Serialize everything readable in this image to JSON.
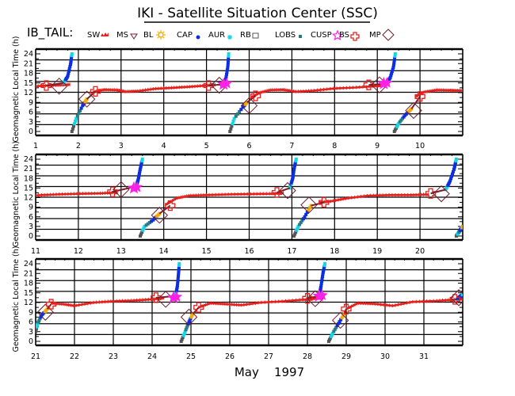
{
  "header": {
    "title": "IKI - Satellite Situation Center (SSC)",
    "region_label": "IB_TAIL:"
  },
  "legend": [
    {
      "label": "SW",
      "symbol": "bow-shock-marker",
      "color": "#e8201c"
    },
    {
      "label": "MS",
      "symbol": "triangle-down",
      "color": "#7a1e2e"
    },
    {
      "label": "BL",
      "symbol": "sun",
      "color": "#f5a800"
    },
    {
      "label": "CAP",
      "symbol": "dot",
      "color": "#0b2ee0"
    },
    {
      "label": "AUR",
      "symbol": "asterisk",
      "color": "#12d6e8"
    },
    {
      "label": "RB",
      "symbol": "square-open",
      "color": "#555555"
    },
    {
      "label": "LOBS",
      "symbol": "square-filled",
      "color": "#2a7a86"
    },
    {
      "label": "CUSP",
      "symbol": "star",
      "color": "#ff22e6"
    },
    {
      "label": "BS",
      "symbol": "cross-open",
      "color": "#e8201c"
    },
    {
      "label": "MP",
      "symbol": "diamond-open",
      "color": "#6b1e2b"
    }
  ],
  "chart_data": {
    "type": "scatter",
    "title": "IKI - Satellite Situation Center (SSC)",
    "xlabel": "May    1997",
    "ylabel": "Geomagnetic Local Time (h)",
    "ylim": [
      0,
      24
    ],
    "yticks": [
      0,
      3,
      6,
      9,
      12,
      15,
      18,
      21,
      24
    ],
    "grid": true,
    "legend_position": "top",
    "colors": {
      "SW": "#e8201c",
      "MS": "#7a1e2e",
      "BL": "#f5a800",
      "CAP": "#0b2ee0",
      "AUR": "#12d6e8",
      "RB": "#555555",
      "LOBS": "#2a7a86",
      "CUSP": "#ff22e6",
      "BS": "#e8201c",
      "MP": "#6b1e2b"
    },
    "panels": [
      {
        "xlim": [
          1,
          11
        ],
        "xticks": [
          "1",
          "2",
          "3",
          "4",
          "5",
          "6",
          "7",
          "8",
          "9",
          "10"
        ],
        "sw_track": [
          [
            1.0,
            14.0
          ],
          [
            1.5,
            14.3
          ],
          [
            1.8,
            14.5
          ]
        ],
        "sw_tracks_more": [
          [
            [
              2.35,
              12.2
            ],
            [
              2.6,
              12.9
            ],
            [
              2.9,
              12.8
            ],
            [
              3.1,
              12.3
            ],
            [
              3.4,
              12.5
            ],
            [
              3.8,
              13.2
            ],
            [
              4.2,
              13.5
            ],
            [
              4.6,
              13.8
            ],
            [
              5.0,
              14.2
            ],
            [
              5.2,
              14.4
            ]
          ],
          [
            [
              6.05,
              10.5
            ],
            [
              6.25,
              12.0
            ],
            [
              6.5,
              12.8
            ],
            [
              6.8,
              12.9
            ],
            [
              7.1,
              12.3
            ],
            [
              7.5,
              12.6
            ],
            [
              8.0,
              13.3
            ],
            [
              8.5,
              13.6
            ],
            [
              9.0,
              14.1
            ],
            [
              9.1,
              14.3
            ]
          ],
          [
            [
              9.9,
              10.8
            ],
            [
              10.1,
              12.2
            ],
            [
              10.4,
              12.8
            ],
            [
              10.7,
              12.7
            ],
            [
              11.0,
              12.6
            ]
          ]
        ],
        "descending_arcs": [
          {
            "x": [
              1.85,
              1.95,
              2.1,
              2.2
            ],
            "y": [
              0,
              4,
              8,
              10
            ],
            "bs": [
              2.4,
              12.4
            ],
            "mp": [
              2.2,
              10.0
            ]
          },
          {
            "x": [
              5.55,
              5.65,
              5.85,
              5.95
            ],
            "y": [
              0,
              4,
              7.5,
              9.0
            ],
            "bs": [
              6.15,
              11.0
            ],
            "mp": [
              6.0,
              8.0
            ]
          },
          {
            "x": [
              9.4,
              9.5,
              9.65,
              9.8
            ],
            "y": [
              0,
              2.5,
              5.0,
              7.0
            ],
            "bs": [
              10.0,
              10.8
            ],
            "mp": [
              9.85,
              6.5
            ]
          }
        ],
        "ascending_arcs": [
          {
            "x": [
              1.65,
              1.75,
              1.82,
              1.85
            ],
            "y": [
              15,
              17,
              21,
              24
            ],
            "bs": [
              1.25,
              14.2
            ],
            "mp": [
              1.55,
              14.0
            ],
            "cusp": null
          },
          {
            "x": [
              5.35,
              5.45,
              5.5,
              5.52
            ],
            "y": [
              14.5,
              16,
              20,
              24
            ],
            "bs": [
              5.05,
              14.2
            ],
            "mp": [
              5.3,
              14.3
            ],
            "cusp": [
              5.4,
              14.6
            ]
          },
          {
            "x": [
              9.2,
              9.3,
              9.38,
              9.42
            ],
            "y": [
              14.8,
              16.5,
              20,
              24
            ],
            "bs": [
              8.8,
              14.4
            ],
            "mp": [
              9.05,
              14.4
            ],
            "cusp": [
              9.15,
              14.8
            ]
          }
        ]
      },
      {
        "xlim": [
          11,
          21
        ],
        "xticks": [
          "11",
          "12",
          "13",
          "14",
          "15",
          "16",
          "17",
          "18",
          "19",
          "20"
        ],
        "sw_tracks_more": [
          [
            [
              11.0,
              12.7
            ],
            [
              11.5,
              13.0
            ],
            [
              12.0,
              13.2
            ],
            [
              12.5,
              13.3
            ],
            [
              12.9,
              13.6
            ]
          ],
          [
            [
              14.05,
              9.8
            ],
            [
              14.3,
              11.8
            ],
            [
              14.6,
              12.6
            ],
            [
              15.0,
              12.8
            ],
            [
              15.5,
              13.0
            ],
            [
              16.0,
              13.1
            ],
            [
              16.5,
              13.2
            ],
            [
              16.8,
              13.4
            ]
          ],
          [
            [
              17.65,
              10.5
            ],
            [
              17.9,
              10.8
            ],
            [
              18.3,
              11.8
            ],
            [
              18.8,
              12.6
            ],
            [
              19.3,
              12.8
            ],
            [
              19.8,
              12.8
            ],
            [
              20.2,
              13.0
            ]
          ]
        ],
        "descending_arcs": [
          {
            "x": [
              13.45,
              13.55,
              13.75,
              13.9
            ],
            "y": [
              0,
              3,
              5,
              7
            ],
            "bs": [
              14.15,
              9.5
            ],
            "mp": [
              13.9,
              6.5
            ]
          },
          {
            "x": [
              17.05,
              17.15,
              17.3,
              17.45
            ],
            "y": [
              0,
              3,
              6,
              9.5
            ],
            "bs": [
              17.75,
              10.5
            ],
            "mp": [
              17.4,
              9.7
            ]
          },
          {
            "x": [
              20.85,
              20.9,
              20.95,
              21.0
            ],
            "y": [
              0,
              1,
              2,
              3
            ]
          }
        ],
        "ascending_arcs": [
          {
            "x": [
              13.35,
              13.4,
              13.45,
              13.5
            ],
            "y": [
              15.5,
              17.5,
              21,
              24
            ],
            "bs": [
              12.8,
              13.8
            ],
            "mp": [
              13.0,
              14.5
            ],
            "cusp": [
              13.3,
              15.0
            ]
          },
          {
            "x": [
              16.95,
              17.02,
              17.05,
              17.1
            ],
            "y": [
              15,
              18,
              21,
              24
            ],
            "bs": [
              16.65,
              13.6
            ],
            "mp": [
              16.9,
              14.2
            ],
            "cusp": null
          },
          {
            "x": [
              20.6,
              20.7,
              20.8,
              20.85
            ],
            "y": [
              14.5,
              17,
              21,
              24
            ],
            "bs": [
              20.25,
              13.3
            ],
            "mp": [
              20.5,
              13.2
            ],
            "cusp": null
          }
        ]
      },
      {
        "xlim": [
          21,
          32
        ],
        "xticks": [
          "21",
          "22",
          "23",
          "24",
          "25",
          "26",
          "27",
          "28",
          "29",
          "30",
          "31"
        ],
        "sw_tracks_more": [
          [
            [
              21.4,
              11.8
            ],
            [
              21.7,
              11.5
            ],
            [
              22.0,
              11.0
            ],
            [
              22.5,
              12.0
            ],
            [
              23.0,
              12.4
            ],
            [
              23.5,
              12.6
            ],
            [
              24.0,
              13.0
            ],
            [
              24.3,
              13.4
            ]
          ],
          [
            [
              25.2,
              10.5
            ],
            [
              25.5,
              11.8
            ],
            [
              25.9,
              11.5
            ],
            [
              26.3,
              11.2
            ],
            [
              26.8,
              12.0
            ],
            [
              27.4,
              12.4
            ],
            [
              28.0,
              13.0
            ],
            [
              28.3,
              13.3
            ]
          ],
          [
            [
              29.0,
              10.0
            ],
            [
              29.3,
              11.8
            ],
            [
              29.7,
              11.6
            ],
            [
              30.2,
              11.0
            ],
            [
              30.7,
              12.2
            ],
            [
              31.3,
              12.5
            ],
            [
              31.8,
              12.9
            ],
            [
              32.0,
              13.1
            ]
          ]
        ],
        "descending_arcs": [
          {
            "x": [
              21.0,
              21.05,
              21.15,
              21.3
            ],
            "y": [
              3,
              5.5,
              8,
              10
            ],
            "bs": [
              21.4,
              11.5
            ],
            "mp": [
              21.25,
              9.0
            ]
          },
          {
            "x": [
              24.75,
              24.85,
              24.95,
              25.05
            ],
            "y": [
              0,
              3,
              6,
              8.5
            ],
            "bs": [
              25.2,
              10.5
            ],
            "mp": [
              24.95,
              7.5
            ]
          },
          {
            "x": [
              28.55,
              28.65,
              28.8,
              28.95
            ],
            "y": [
              0,
              2.5,
              5.5,
              8.5
            ],
            "bs": [
              29.0,
              10.0
            ],
            "mp": [
              28.85,
              6.5
            ]
          }
        ],
        "ascending_arcs": [
          {
            "x": [
              24.6,
              24.65,
              24.68,
              24.7
            ],
            "y": [
              14,
              17,
              21,
              24
            ],
            "bs": [
              24.1,
              13.5
            ],
            "mp": [
              24.35,
              13.0
            ],
            "cusp": [
              24.55,
              13.5
            ]
          },
          {
            "x": [
              28.3,
              28.35,
              28.4,
              28.45
            ],
            "y": [
              14,
              17,
              21,
              24
            ],
            "bs": [
              28.0,
              13.3
            ],
            "mp": [
              28.2,
              13.2
            ],
            "cusp": [
              28.3,
              14.0
            ]
          },
          {
            "x": [
              31.85,
              31.9,
              31.95,
              32.0
            ],
            "y": [
              13,
              13.5,
              14,
              14.5
            ],
            "bs": [
              31.8,
              13.0
            ],
            "mp": [
              31.9,
              13.5
            ],
            "cusp": null
          }
        ]
      }
    ]
  }
}
